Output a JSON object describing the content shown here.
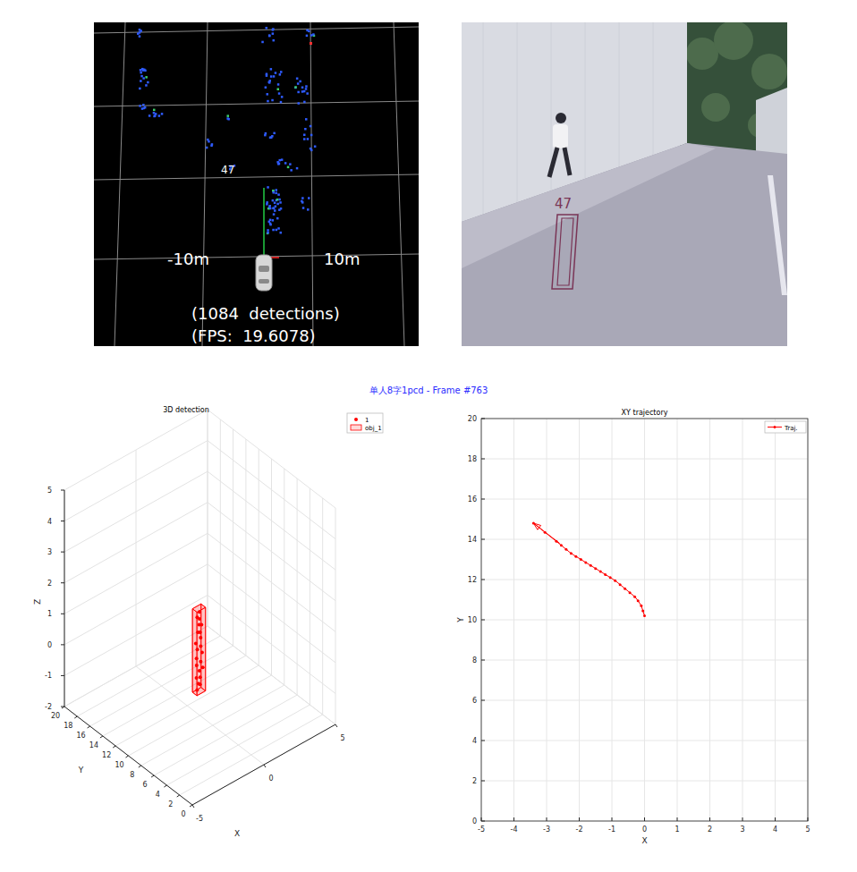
{
  "title": "单人8字1pcd - Frame #763",
  "lidar_view": {
    "scale_left": "-10m",
    "scale_right": "10m",
    "track_id": "47",
    "detections": "(1084  detections)",
    "fps": "(FPS:  19.6078)"
  },
  "camera_view": {
    "track_id": "47"
  },
  "chart_data": [
    {
      "type": "scatter3d",
      "title": "3D detection",
      "x_label": "X",
      "y_label": "Y",
      "z_label": "Z",
      "xlim": [
        -5,
        5
      ],
      "ylim": [
        0,
        20
      ],
      "zlim": [
        -2,
        5
      ],
      "xticks": [
        -5,
        0,
        5
      ],
      "yticks": [
        0,
        2,
        4,
        6,
        8,
        10,
        12,
        14,
        16,
        18,
        20
      ],
      "zticks": [
        -2,
        -1,
        0,
        1,
        2,
        3,
        4,
        5
      ],
      "grid": true,
      "legend": "northeastoutside",
      "series": [
        {
          "name": "1",
          "type": "scatter",
          "color": "#ff0000",
          "marker": "dot",
          "x": [
            -0.15,
            0.1,
            -0.1,
            0.15,
            -0.2,
            0.05,
            0.2,
            -0.1,
            0.1,
            -0.15,
            0.15,
            -0.05,
            0.1,
            -0.2,
            0.05,
            0.15,
            -0.1,
            0.2,
            -0.05,
            0.1,
            -0.15,
            0.05
          ],
          "y": [
            10.1,
            10.2,
            10.0,
            10.3,
            10.1,
            10.2,
            10.0,
            10.3,
            10.1,
            10.2,
            10.0,
            10.3,
            10.1,
            10.2,
            10.0,
            10.3,
            10.1,
            10.2,
            10.0,
            10.3,
            10.1,
            10.2
          ],
          "z": [
            -1.15,
            -1.05,
            -0.95,
            -0.85,
            -0.75,
            -0.6,
            -0.5,
            -0.4,
            -0.3,
            -0.15,
            0,
            0.1,
            0.2,
            0.35,
            0.5,
            0.6,
            0.7,
            0.85,
            0.95,
            1.05,
            1.2,
            1.3
          ]
        },
        {
          "name": "obj_1",
          "type": "box",
          "color": "#ff0000",
          "x": [
            -0.3,
            0.3
          ],
          "y": [
            9.8,
            10.5
          ],
          "z": [
            -1.25,
            1.45
          ]
        }
      ]
    },
    {
      "type": "line",
      "title": "XY trajectory",
      "x_label": "X",
      "y_label": "Y",
      "xlim": [
        -5,
        5
      ],
      "ylim": [
        0,
        20
      ],
      "xticks": [
        -5,
        -4,
        -3,
        -2,
        -1,
        0,
        1,
        2,
        3,
        4,
        5
      ],
      "yticks": [
        0,
        2,
        4,
        6,
        8,
        10,
        12,
        14,
        16,
        18,
        20
      ],
      "grid": true,
      "legend": "northeast",
      "series": [
        {
          "name": "Traj.",
          "color": "#ff0000",
          "marker": "dot",
          "line_style": "solid",
          "x": [
            0,
            -0.05,
            -0.1,
            -0.2,
            -0.3,
            -0.45,
            -0.6,
            -0.75,
            -0.9,
            -1.05,
            -1.2,
            -1.35,
            -1.5,
            -1.65,
            -1.8,
            -1.95,
            -2.1,
            -2.25,
            -2.4,
            -2.55,
            -2.7,
            -3.05,
            -3.4
          ],
          "y": [
            10.2,
            10.45,
            10.7,
            10.95,
            11.15,
            11.35,
            11.55,
            11.75,
            11.95,
            12.1,
            12.25,
            12.4,
            12.55,
            12.7,
            12.85,
            13.0,
            13.15,
            13.3,
            13.5,
            13.7,
            13.9,
            14.35,
            14.8
          ],
          "arrow_x": [
            -2.6,
            -3.4
          ],
          "arrow_y": [
            13.8,
            14.8
          ]
        }
      ]
    }
  ]
}
